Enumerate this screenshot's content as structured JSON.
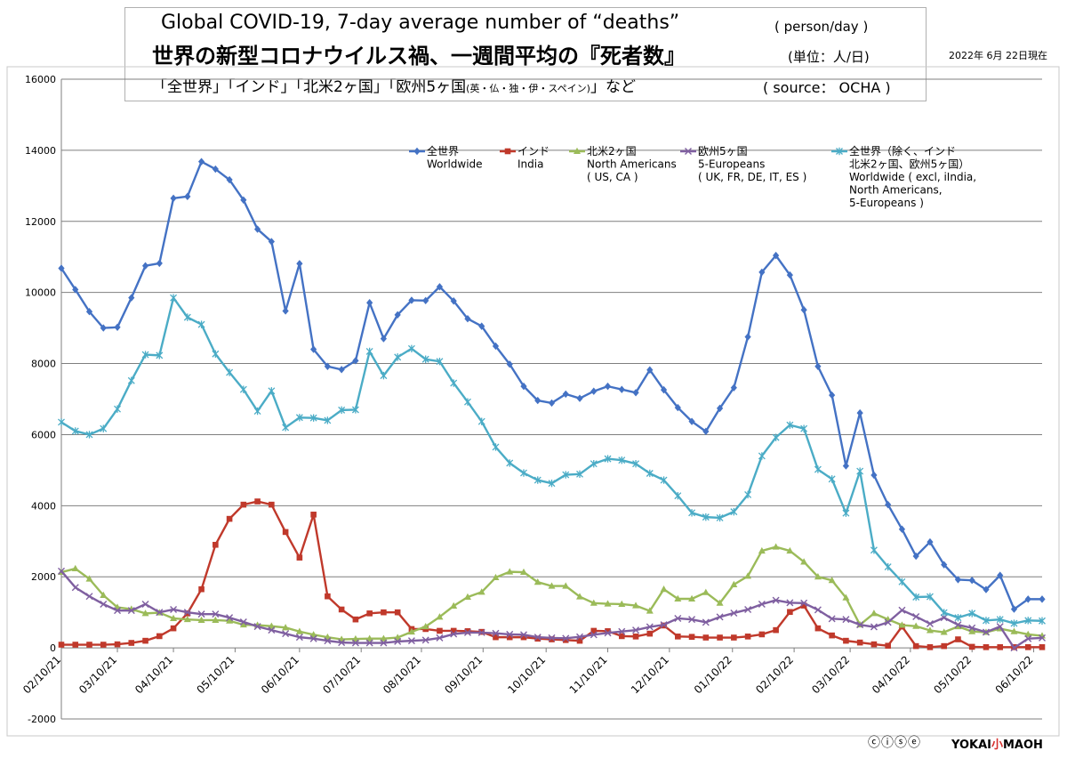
{
  "title": {
    "line1": "Global COVID-19, 7-day average number of “deaths”",
    "line1_unit": "( person/day )",
    "line2": "世界の新型コロナウイルス禍、一週間平均の『死者数』",
    "line2_unit": "(単位：人/日)",
    "line3_pre": "「全世界」「インド」「北米2ヶ国」「欧州5ヶ国",
    "line3_small": "(英・仏・独・伊・スペイン)",
    "line3_post": "」など",
    "line3_source": "( source： OCHA )"
  },
  "date_note": "2022年 6月 22日現在",
  "footer": {
    "license": "ⓒⓘⓢⓔ",
    "brand_left": "YOKAI",
    "brand_mid": "小",
    "brand_right": "MAOH"
  },
  "chart_data": {
    "type": "line",
    "ylim": [
      -2000,
      16000
    ],
    "yticks": [
      -2000,
      0,
      2000,
      4000,
      6000,
      8000,
      10000,
      12000,
      14000,
      16000
    ],
    "ytick_labels": [
      "-2000",
      "0",
      "2000",
      "4000",
      "6000",
      "8000",
      "10000",
      "12000",
      "14000",
      "16000"
    ],
    "xtick_labels": [
      "02/10/21",
      "03/10/21",
      "04/10/21",
      "05/10/21",
      "06/10/21",
      "07/10/21",
      "08/10/21",
      "09/10/21",
      "10/10/21",
      "11/10/21",
      "12/10/21",
      "01/10/22",
      "02/10/22",
      "03/10/22",
      "04/10/22",
      "05/10/22",
      "06/10/22"
    ],
    "xtick_weeks": [
      0,
      4,
      8,
      12.4,
      17,
      21.4,
      25.7,
      30.1,
      34.6,
      39,
      43.4,
      47.9,
      52.3,
      56.3,
      60.6,
      65,
      69.4
    ],
    "grid": "horizontal",
    "legend_position": "top",
    "series": [
      {
        "name": "全世界\nWorldwide",
        "color": "#4472c4",
        "marker": "diamond",
        "values": [
          10680,
          10080,
          9460,
          9000,
          9020,
          9850,
          10750,
          10820,
          12650,
          12700,
          13680,
          13470,
          13170,
          12600,
          11780,
          11430,
          9480,
          10810,
          8400,
          7920,
          7830,
          8080,
          9710,
          8700,
          9370,
          9780,
          9770,
          10160,
          9760,
          9260,
          9050,
          8490,
          7980,
          7360,
          6960,
          6890,
          7140,
          7020,
          7220,
          7360,
          7270,
          7180,
          7820,
          7260,
          6760,
          6370,
          6090,
          6740,
          7320,
          8750,
          10570,
          11040,
          10490,
          9510,
          7920,
          7110,
          5120,
          6610,
          4860,
          4030,
          3340,
          2580,
          2980,
          2340,
          1920,
          1900,
          1640,
          2040,
          1090,
          1370,
          1370
        ]
      },
      {
        "name": "インド\nIndia",
        "color": "#c0392b",
        "marker": "square",
        "values": [
          90,
          90,
          90,
          90,
          100,
          140,
          200,
          330,
          550,
          970,
          1650,
          2900,
          3630,
          4030,
          4120,
          4030,
          3260,
          2540,
          3750,
          1450,
          1080,
          800,
          970,
          1000,
          1000,
          530,
          530,
          480,
          480,
          470,
          450,
          300,
          300,
          300,
          260,
          240,
          220,
          200,
          480,
          470,
          330,
          320,
          400,
          630,
          320,
          310,
          290,
          290,
          290,
          320,
          380,
          500,
          1010,
          1190,
          550,
          350,
          200,
          150,
          100,
          60,
          600,
          50,
          20,
          50,
          240,
          30,
          20,
          20,
          20,
          20,
          20
        ]
      },
      {
        "name": "北米2ヶ国\nNorth Americans\n( US, CA )",
        "color": "#9bbb59",
        "marker": "triangle",
        "values": [
          2130,
          2230,
          1940,
          1480,
          1140,
          1090,
          970,
          990,
          830,
          800,
          780,
          780,
          760,
          650,
          640,
          610,
          570,
          460,
          370,
          300,
          240,
          250,
          260,
          260,
          290,
          450,
          600,
          870,
          1180,
          1430,
          1570,
          1980,
          2140,
          2130,
          1850,
          1740,
          1740,
          1440,
          1260,
          1240,
          1230,
          1190,
          1040,
          1650,
          1380,
          1380,
          1560,
          1260,
          1780,
          2020,
          2730,
          2840,
          2730,
          2420,
          2000,
          1900,
          1410,
          650,
          970,
          800,
          640,
          610,
          490,
          440,
          600,
          460,
          440,
          540,
          460,
          380,
          340
        ]
      },
      {
        "name": "欧州5ヶ国\n5-Europeans\n( UK, FR, DE, IT, ES )",
        "color": "#7f5fa0",
        "marker": "x",
        "values": [
          2160,
          1700,
          1450,
          1230,
          1050,
          1050,
          1230,
          1000,
          1080,
          1000,
          950,
          950,
          850,
          730,
          600,
          500,
          400,
          300,
          260,
          200,
          150,
          140,
          140,
          140,
          180,
          200,
          220,
          280,
          390,
          430,
          430,
          410,
          380,
          370,
          300,
          280,
          270,
          310,
          370,
          420,
          460,
          500,
          590,
          650,
          830,
          800,
          720,
          870,
          980,
          1080,
          1230,
          1340,
          1270,
          1260,
          1070,
          820,
          800,
          650,
          590,
          720,
          1060,
          880,
          680,
          850,
          650,
          560,
          440,
          600,
          0,
          260,
          280
        ]
      },
      {
        "name": "全世界（除く、インド\n北米2ヶ国、欧州5ヶ国）\nWorldwide ( excl, iIndia,\nNorth Americans,\n5-Europeans )",
        "color": "#4bacc6",
        "marker": "asterisk",
        "values": [
          6350,
          6100,
          6000,
          6170,
          6720,
          7520,
          8250,
          8230,
          9850,
          9300,
          9100,
          8270,
          7750,
          7270,
          6660,
          7230,
          6200,
          6480,
          6470,
          6400,
          6690,
          6700,
          8340,
          7660,
          8180,
          8420,
          8120,
          8060,
          7450,
          6920,
          6370,
          5650,
          5200,
          4920,
          4720,
          4630,
          4870,
          4890,
          5180,
          5320,
          5280,
          5180,
          4910,
          4720,
          4280,
          3800,
          3680,
          3660,
          3830,
          4310,
          5400,
          5920,
          6270,
          6170,
          5020,
          4750,
          3790,
          4970,
          2750,
          2280,
          1860,
          1430,
          1440,
          990,
          850,
          970,
          770,
          800,
          690,
          770,
          760
        ]
      }
    ]
  }
}
